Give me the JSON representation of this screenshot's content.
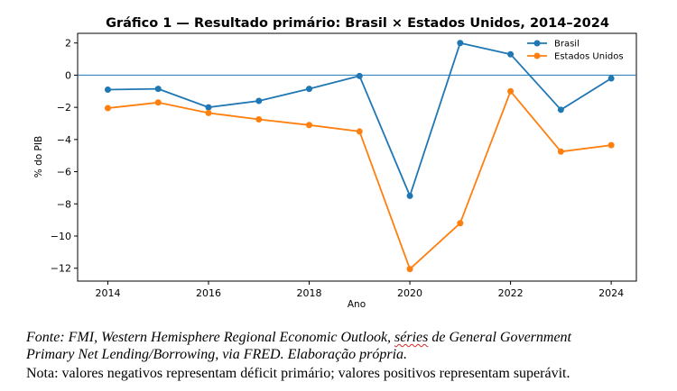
{
  "chart_data": {
    "type": "line",
    "title": "Gráfico 1 — Resultado primário: Brasil × Estados Unidos, 2014–2024",
    "xlabel": "Ano",
    "ylabel": "% do PIB",
    "xlim": [
      2013.4,
      2024.5
    ],
    "ylim": [
      -12.8,
      2.6
    ],
    "x_ticks": [
      2014,
      2016,
      2018,
      2020,
      2022,
      2024
    ],
    "y_ticks": [
      2,
      0,
      -2,
      -4,
      -6,
      -8,
      -10,
      -12
    ],
    "y_tick_labels": [
      "2",
      "0",
      "−2",
      "−4",
      "−6",
      "−8",
      "−10",
      "−12"
    ],
    "grid": false,
    "reference_line": 0,
    "legend_position": "top-right",
    "x": [
      2014,
      2015,
      2016,
      2017,
      2018,
      2019,
      2020,
      2021,
      2022,
      2023,
      2024
    ],
    "series": [
      {
        "name": "Brasil",
        "color": "#1f77b4",
        "values": [
          -0.9,
          -0.85,
          -2.0,
          -1.6,
          -0.85,
          -0.05,
          -7.5,
          2.0,
          1.3,
          -2.15,
          -0.2
        ]
      },
      {
        "name": "Estados Unidos",
        "color": "#ff7f0e",
        "values": [
          -2.05,
          -1.7,
          -2.35,
          -2.75,
          -3.1,
          -3.5,
          -12.05,
          -9.2,
          -1.0,
          -4.75,
          -4.35
        ]
      }
    ]
  },
  "source": {
    "line1_a": "Fonte: FMI, Western Hemisphere Regional Economic Outlook, ",
    "line1_b": "séries",
    "line1_c": " de General Government",
    "line2": "Primary Net Lending/Borrowing, via FRED. Elaboração própria.",
    "note": "Nota: valores negativos representam déficit primário; valores positivos representam superávit."
  }
}
